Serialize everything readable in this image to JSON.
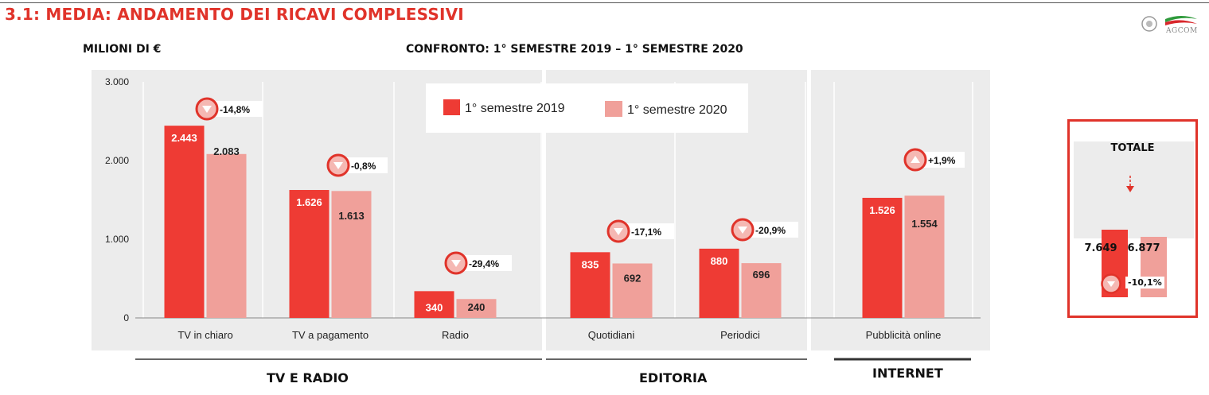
{
  "header": {
    "title": "3.1: MEDIA: ANDAMENTO DEI RICAVI COMPLESSIVI",
    "units": "MILIONI DI €",
    "comparison": "CONFRONTO: 1° SEMESTRE 2019 – 1° SEMESTRE 2020",
    "logo_text": "AGCOM"
  },
  "colors": {
    "series_2019": "#ee3b34",
    "series_2020": "#f0a09a",
    "accent": "#e0332a",
    "panel_bg": "#ececec"
  },
  "chart_data": {
    "type": "bar",
    "title": "",
    "xlabel": "",
    "ylabel": "",
    "ylim": [
      0,
      3000
    ],
    "yticks": [
      "0",
      "1.000",
      "2.000",
      "3.000"
    ],
    "legend": {
      "placement": "top-center",
      "entries": [
        "1° semestre 2019",
        "1° semestre 2020"
      ]
    },
    "grid": false,
    "categories": [
      "TV in chiaro",
      "TV a pagamento",
      "Radio",
      "Quotidiani",
      "Periodici",
      "Pubblicità online"
    ],
    "series": [
      {
        "name": "1° semestre 2019",
        "values": [
          2443,
          1626,
          340,
          835,
          880,
          1526
        ]
      },
      {
        "name": "1° semestre 2020",
        "values": [
          2083,
          1613,
          240,
          692,
          696,
          1554
        ]
      }
    ],
    "value_labels": [
      [
        "2.443",
        "1.626",
        "340",
        "835",
        "880",
        "1.526"
      ],
      [
        "2.083",
        "1.613",
        "240",
        "692",
        "696",
        "1.554"
      ]
    ],
    "changes": [
      {
        "text": "-14,8%",
        "direction": "down"
      },
      {
        "text": "-0,8%",
        "direction": "down"
      },
      {
        "text": "-29,4%",
        "direction": "down"
      },
      {
        "text": "-17,1%",
        "direction": "down"
      },
      {
        "text": "-20,9%",
        "direction": "down"
      },
      {
        "text": "+1,9%",
        "direction": "up"
      }
    ],
    "groups": [
      "TV E RADIO",
      "EDITORIA",
      "INTERNET"
    ],
    "total": {
      "title": "TOTALE",
      "values": [
        7649,
        6877
      ],
      "labels": [
        "7.649",
        "6.877"
      ],
      "change": "-10,1%",
      "direction": "down"
    }
  }
}
